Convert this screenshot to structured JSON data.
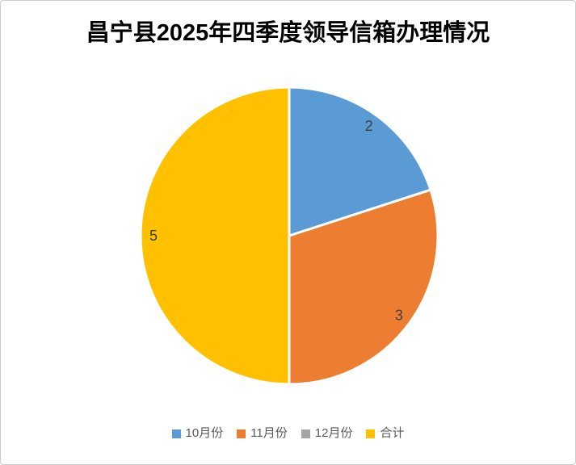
{
  "title": "昌宁县2025年四季度领导信箱办理情况",
  "chart_data": {
    "type": "pie",
    "title": "昌宁县2025年四季度领导信箱办理情况",
    "categories": [
      "10月份",
      "11月份",
      "12月份",
      "合计"
    ],
    "values": [
      2,
      3,
      0,
      5
    ],
    "colors": [
      "#5B9BD5",
      "#ED7D31",
      "#A5A5A5",
      "#FFC000"
    ],
    "visible_data_labels": [
      "2",
      "3",
      "5"
    ],
    "start_angle_deg": 0,
    "direction": "clockwise",
    "slice_border_color": "#FFFFFF",
    "data_label_color": "#404040",
    "legend_position": "bottom"
  },
  "legend": {
    "items": [
      {
        "label": "10月份",
        "color": "#5B9BD5"
      },
      {
        "label": "11月份",
        "color": "#ED7D31"
      },
      {
        "label": "12月份",
        "color": "#A5A5A5"
      },
      {
        "label": "合计",
        "color": "#FFC000"
      }
    ],
    "text_color": "#595959"
  },
  "page": {
    "background": "#FFFFFF",
    "border_color": "#CCCCCC"
  }
}
